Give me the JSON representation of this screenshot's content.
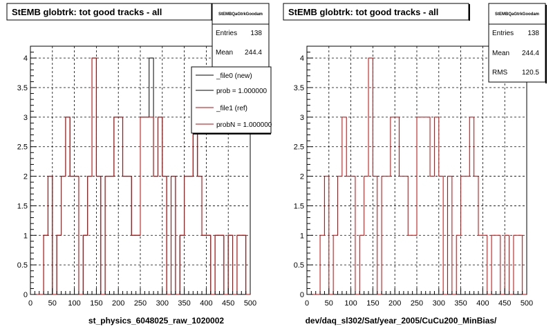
{
  "colors": {
    "new_histogram": "#000000",
    "ref_histogram": "#cc0000",
    "grid": "#000000",
    "frame_background": "#ffffff"
  },
  "footer_text": "",
  "chart_data": [
    {
      "type": "histogram",
      "title": "StEMB globtrk: tot good tracks - all",
      "xlabel": "st_physics_6048025_raw_1020002",
      "ylabel": "",
      "xlim": [
        0,
        500
      ],
      "ylim": [
        0,
        4.2
      ],
      "xticks": [
        0,
        50,
        100,
        150,
        200,
        250,
        300,
        350,
        400,
        450,
        500
      ],
      "xtick_labels": [
        "0",
        "50",
        "100",
        "150",
        "200",
        "250",
        "300",
        "350",
        "400",
        "450",
        "500"
      ],
      "yticks": [
        0,
        0.5,
        1,
        1.5,
        2,
        2.5,
        3,
        3.5,
        4
      ],
      "ytick_labels": [
        "0",
        "0.5",
        "1",
        "1.5",
        "2",
        "2.5",
        "3",
        "3.5",
        "4"
      ],
      "grid": true,
      "bin_edges_start": 0,
      "bin_width": 10,
      "series": [
        {
          "name": "_file0 (new)",
          "color": "#000000",
          "values": [
            0,
            0,
            0,
            1,
            2,
            0,
            1,
            2,
            3,
            2,
            2,
            0,
            1,
            2,
            4,
            2,
            0,
            2,
            2,
            3,
            3,
            2,
            2,
            1,
            1,
            3,
            3,
            4,
            2,
            3,
            2,
            0,
            2,
            0,
            1,
            2,
            2,
            3,
            2,
            1,
            1,
            0,
            1,
            1,
            0,
            1,
            0,
            1,
            1,
            0
          ]
        },
        {
          "name": "_file1 (ref)",
          "color": "#cc0000",
          "values": [
            0,
            0,
            0,
            1,
            2,
            0,
            1,
            2,
            3,
            2,
            2,
            0,
            1,
            2,
            4,
            2,
            0,
            2,
            2,
            3,
            3,
            2,
            2,
            1,
            1,
            3,
            3,
            3,
            2,
            3,
            2,
            0,
            2,
            0,
            1,
            2,
            2,
            3,
            2,
            1,
            1,
            0,
            1,
            1,
            0,
            1,
            0,
            1,
            1,
            0
          ]
        }
      ],
      "stats_box": {
        "name": "StEMBQaGtrkGoodam",
        "rows": [
          {
            "label": "Entries",
            "value": "138"
          },
          {
            "label": "Mean",
            "value": "244.4"
          }
        ]
      },
      "legend": {
        "placement": "top-right",
        "entries": [
          {
            "label": "_file0 (new)",
            "color": "#000000"
          },
          {
            "label": "prob = 1.000000",
            "color": "#000000"
          },
          {
            "label": "_file1 (ref)",
            "color": "#cc0000"
          },
          {
            "label": "probN = 1.000000",
            "color": "#cc0000"
          }
        ]
      }
    },
    {
      "type": "histogram",
      "title": "StEMB globtrk: tot good tracks - all",
      "xlabel": "dev/daq_sl302/Sat/year_2005/CuCu200_MinBias/",
      "ylabel": "",
      "xlim": [
        0,
        500
      ],
      "ylim": [
        0,
        4.2
      ],
      "xticks": [
        0,
        50,
        100,
        150,
        200,
        250,
        300,
        350,
        400,
        450,
        500
      ],
      "xtick_labels": [
        "0",
        "50",
        "100",
        "150",
        "200",
        "250",
        "300",
        "350",
        "400",
        "450",
        "500"
      ],
      "yticks": [
        0,
        0.5,
        1,
        1.5,
        2,
        2.5,
        3,
        3.5,
        4
      ],
      "ytick_labels": [
        "0",
        "0.5",
        "1",
        "1.5",
        "2",
        "2.5",
        "3",
        "3.5",
        "4"
      ],
      "grid": true,
      "bin_edges_start": 0,
      "bin_width": 10,
      "series": [
        {
          "color": "#cc0000",
          "values": [
            0,
            0,
            0,
            1,
            2,
            0,
            1,
            2,
            3,
            2,
            2,
            0,
            1,
            2,
            4,
            2,
            0,
            2,
            2,
            3,
            3,
            2,
            2,
            1,
            1,
            3,
            3,
            3,
            2,
            3,
            2,
            0,
            2,
            0,
            1,
            2,
            2,
            3,
            2,
            1,
            1,
            0,
            1,
            1,
            0,
            1,
            0,
            1,
            1,
            0
          ]
        }
      ],
      "stats_box": {
        "name": "StEMBQaGtrkGoodam",
        "rows": [
          {
            "label": "Entries",
            "value": "138"
          },
          {
            "label": "Mean",
            "value": "244.4"
          },
          {
            "label": "RMS",
            "value": "120.5"
          }
        ]
      }
    }
  ]
}
